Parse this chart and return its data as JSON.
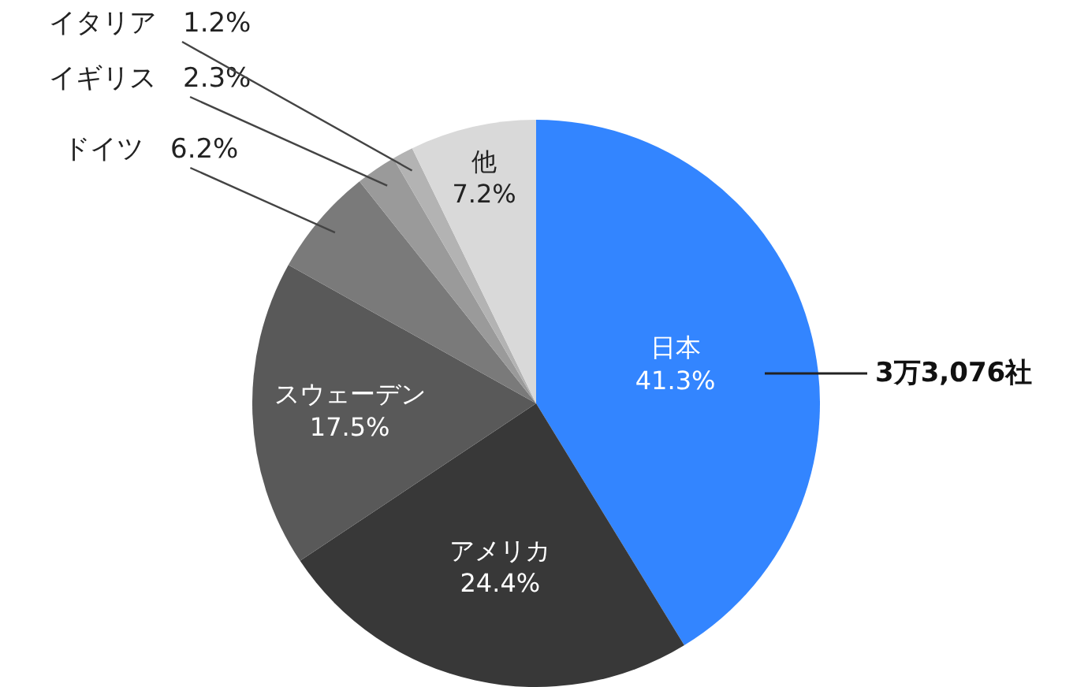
{
  "chart_data": {
    "type": "pie",
    "categories": [
      "日本",
      "アメリカ",
      "スウェーデン",
      "ドイツ",
      "イギリス",
      "イタリア",
      "他"
    ],
    "values": [
      41.3,
      24.4,
      17.5,
      6.2,
      2.3,
      1.2,
      7.2
    ],
    "value_labels": [
      "41.3%",
      "24.4%",
      "17.5%",
      "6.2%",
      "2.3%",
      "1.2%",
      "7.2%"
    ],
    "colors": [
      "#3385ff",
      "#383838",
      "#595959",
      "#7a7a7a",
      "#9a9a9a",
      "#b3b3b3",
      "#d9d9d9"
    ],
    "annotations": [
      "3万3,076社"
    ],
    "legend": false
  }
}
